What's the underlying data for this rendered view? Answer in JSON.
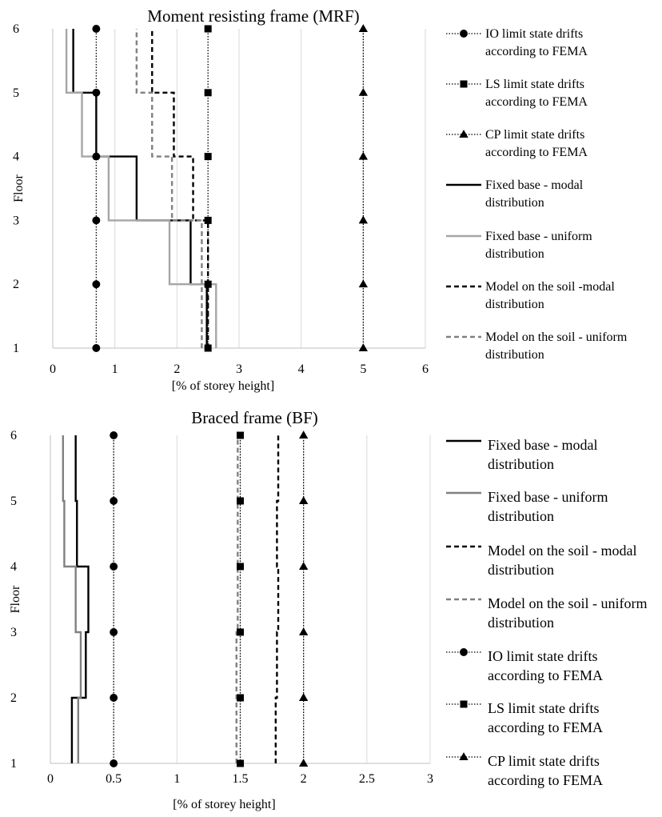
{
  "chart_data": [
    {
      "type": "line",
      "title": "Moment resisting frame (MRF)",
      "xlabel": "[% of storey height]",
      "ylabel": "Floor",
      "xlim": [
        0,
        6
      ],
      "ylim": [
        1,
        6
      ],
      "xticks": [
        "0",
        "1",
        "2",
        "3",
        "4",
        "5",
        "6"
      ],
      "yticks": [
        "1",
        "2",
        "3",
        "4",
        "5",
        "6"
      ],
      "grid": "vertical",
      "legend_position": "right",
      "series": [
        {
          "name": "IO limit state drifts according to FEMA",
          "style": "dotted",
          "marker": "circle",
          "color": "#000000",
          "x": [
            0.7,
            0.7,
            0.7,
            0.7,
            0.7,
            0.7
          ],
          "y": [
            1,
            2,
            3,
            4,
            5,
            6
          ]
        },
        {
          "name": "LS limit state drifts according to FEMA",
          "style": "dotted",
          "marker": "square",
          "color": "#000000",
          "x": [
            2.5,
            2.5,
            2.5,
            2.5,
            2.5,
            2.5
          ],
          "y": [
            1,
            2,
            3,
            4,
            5,
            6
          ]
        },
        {
          "name": "CP limit state drifts according to FEMA",
          "style": "dotted",
          "marker": "triangle",
          "color": "#000000",
          "x": [
            5,
            5,
            5,
            5,
            5,
            5
          ],
          "y": [
            1,
            2,
            3,
            4,
            5,
            6
          ]
        },
        {
          "name": "Fixed base - modal distribution",
          "style": "solid",
          "step": true,
          "color": "#000000",
          "x": [
            2.48,
            2.22,
            1.35,
            0.7,
            0.33,
            0.33
          ],
          "y": [
            1,
            2,
            3,
            4,
            5,
            6
          ]
        },
        {
          "name": "Fixed base - uniform distribution",
          "style": "solid",
          "step": true,
          "color": "#a6a6a6",
          "x": [
            2.63,
            1.88,
            0.9,
            0.47,
            0.22,
            0.22
          ],
          "y": [
            1,
            2,
            3,
            4,
            5,
            6
          ]
        },
        {
          "name": "Model on the soil -modal distribution",
          "style": "dashed",
          "step": true,
          "color": "#000000",
          "x": [
            2.5,
            2.5,
            2.26,
            1.95,
            1.6,
            1.6
          ],
          "y": [
            1,
            2,
            3,
            4,
            5,
            6
          ]
        },
        {
          "name": "Model on the soil - uniform distribution",
          "style": "dashed",
          "step": true,
          "color": "#808080",
          "x": [
            2.4,
            2.4,
            1.92,
            1.6,
            1.35,
            1.35
          ],
          "y": [
            1,
            2,
            3,
            4,
            5,
            6
          ]
        }
      ]
    },
    {
      "type": "line",
      "title": "Braced frame (BF)",
      "xlabel": "[% of storey height]",
      "ylabel": "Floor",
      "xlim": [
        0,
        3
      ],
      "ylim": [
        1,
        6
      ],
      "xticks": [
        "0",
        "0.5",
        "1",
        "1.5",
        "2",
        "2.5",
        "3"
      ],
      "yticks": [
        "1",
        "2",
        "3",
        "4",
        "5",
        "6"
      ],
      "grid": "vertical",
      "legend_position": "right",
      "series": [
        {
          "name": "Fixed base - modal distribution",
          "style": "solid",
          "step": true,
          "color": "#000000",
          "x": [
            0.17,
            0.28,
            0.3,
            0.21,
            0.2,
            0.2
          ],
          "y": [
            1,
            2,
            3,
            4,
            5,
            6
          ]
        },
        {
          "name": "Fixed base - uniform distribution",
          "style": "solid",
          "step": true,
          "color": "#808080",
          "x": [
            0.22,
            0.24,
            0.2,
            0.11,
            0.1,
            0.1
          ],
          "y": [
            1,
            2,
            3,
            4,
            5,
            6
          ]
        },
        {
          "name": "Model on the soil - modal distribution",
          "style": "dashed",
          "step": true,
          "color": "#000000",
          "x": [
            1.78,
            1.79,
            1.8,
            1.79,
            1.8,
            1.8
          ],
          "y": [
            1,
            2,
            3,
            4,
            5,
            6
          ]
        },
        {
          "name": "Model on the soil - uniform distribution",
          "style": "dashed",
          "step": true,
          "color": "#808080",
          "x": [
            1.47,
            1.47,
            1.48,
            1.48,
            1.48,
            1.48
          ],
          "y": [
            1,
            2,
            3,
            4,
            5,
            6
          ]
        },
        {
          "name": "IO limit state drifts according to FEMA",
          "style": "dotted",
          "marker": "circle",
          "color": "#000000",
          "x": [
            0.5,
            0.5,
            0.5,
            0.5,
            0.5,
            0.5
          ],
          "y": [
            1,
            2,
            3,
            4,
            5,
            6
          ]
        },
        {
          "name": "LS limit state drifts according to FEMA",
          "style": "dotted",
          "marker": "square",
          "color": "#000000",
          "x": [
            1.5,
            1.5,
            1.5,
            1.5,
            1.5,
            1.5
          ],
          "y": [
            1,
            2,
            3,
            4,
            5,
            6
          ]
        },
        {
          "name": "CP limit state drifts according to FEMA",
          "style": "dotted",
          "marker": "triangle",
          "color": "#000000",
          "x": [
            2,
            2,
            2,
            2,
            2,
            2
          ],
          "y": [
            1,
            2,
            3,
            4,
            5,
            6
          ]
        }
      ]
    }
  ]
}
